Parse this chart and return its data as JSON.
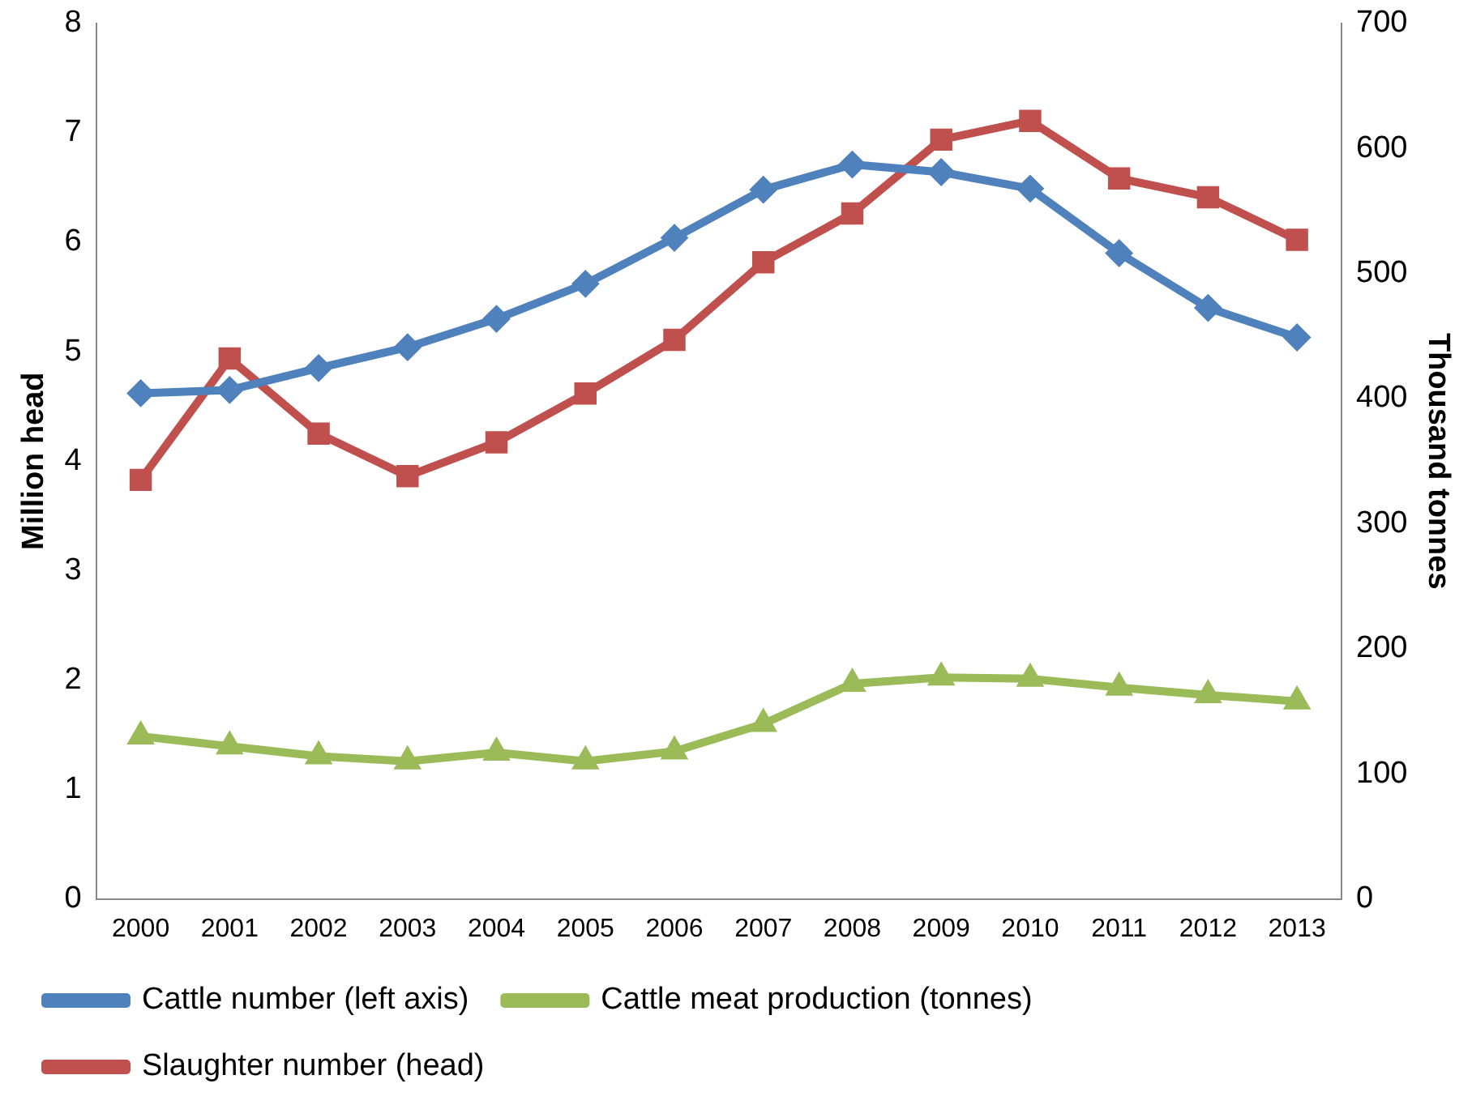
{
  "chart_data": {
    "type": "line",
    "ylabel": "Million head",
    "y2label": "Thousand tonnes",
    "categories": [
      "2000",
      "2001",
      "2002",
      "2003",
      "2004",
      "2005",
      "2006",
      "2007",
      "2008",
      "2009",
      "2010",
      "2011",
      "2012",
      "2013"
    ],
    "series": [
      {
        "name": "Cattle number (left axis)",
        "color": "#4f81bd",
        "marker": "diamond",
        "values": [
          4.62,
          4.65,
          4.85,
          5.04,
          5.3,
          5.62,
          6.04,
          6.48,
          6.71,
          6.64,
          6.49,
          5.9,
          5.4,
          5.13
        ]
      },
      {
        "name": "Cattle meat production (tonnes)",
        "color": "#9bbb59",
        "marker": "triangle",
        "axis": "y2",
        "values": [
          130,
          122,
          114,
          110,
          117,
          110,
          118,
          140,
          172,
          177,
          176,
          169,
          163,
          158
        ]
      },
      {
        "name": "Slaughter number (head)",
        "color": "#c0504d",
        "marker": "square",
        "axis": "y2",
        "values": [
          335,
          432,
          372,
          338,
          365,
          404,
          447,
          509,
          548,
          607,
          622,
          576,
          561,
          527
        ]
      }
    ],
    "ylim": [
      0,
      8
    ],
    "yticks": [
      0,
      1,
      2,
      3,
      4,
      5,
      6,
      7,
      8
    ],
    "y2lim": [
      0,
      700
    ],
    "y2ticks": [
      0,
      100,
      200,
      300,
      400,
      500,
      600,
      700
    ],
    "grid": false,
    "legend": "bottom",
    "line_style": "solid"
  }
}
